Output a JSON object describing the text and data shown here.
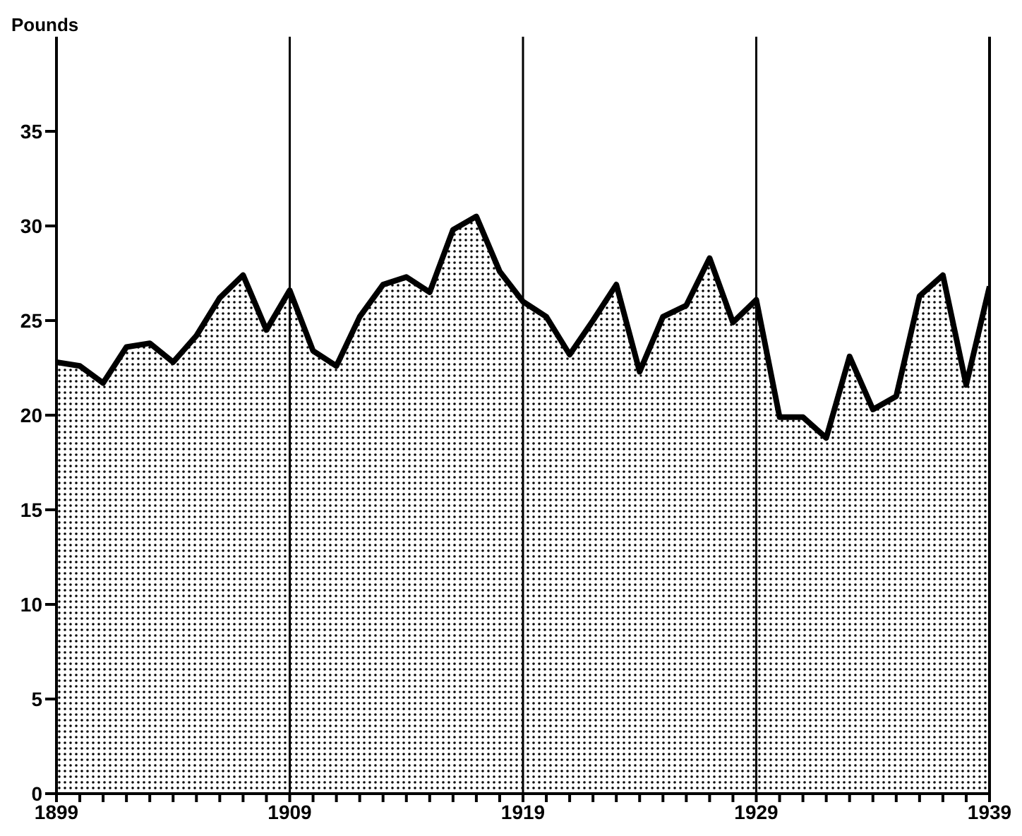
{
  "chart_data": {
    "type": "area",
    "ylabel": "Pounds",
    "x": [
      1899,
      1900,
      1901,
      1902,
      1903,
      1904,
      1905,
      1906,
      1907,
      1908,
      1909,
      1910,
      1911,
      1912,
      1913,
      1914,
      1915,
      1916,
      1917,
      1918,
      1919,
      1920,
      1921,
      1922,
      1923,
      1924,
      1925,
      1926,
      1927,
      1928,
      1929,
      1930,
      1931,
      1932,
      1933,
      1934,
      1935,
      1936,
      1937,
      1938,
      1939
    ],
    "series": [
      {
        "color": "#000000",
        "values": [
          22.8,
          22.6,
          21.7,
          23.6,
          23.8,
          22.8,
          24.2,
          26.2,
          27.4,
          24.5,
          26.6,
          23.4,
          22.6,
          25.2,
          26.9,
          27.3,
          26.5,
          29.8,
          30.5,
          27.6,
          26.0,
          25.2,
          23.2,
          25.0,
          26.9,
          22.3,
          25.2,
          25.8,
          28.3,
          24.9,
          26.1,
          19.9,
          19.9,
          18.8,
          23.1,
          20.3,
          21.0,
          26.3,
          27.4,
          21.6,
          26.8
        ]
      }
    ],
    "xlim": [
      1899,
      1939
    ],
    "xticks": [
      1899,
      {
        "value": 1900,
        "label": null
      },
      {
        "value": 1901,
        "label": null
      },
      {
        "value": 1902,
        "label": null
      },
      {
        "value": 1903,
        "label": null
      },
      {
        "value": 1904,
        "label": null
      },
      {
        "value": 1905,
        "label": null
      },
      {
        "value": 1906,
        "label": null
      },
      {
        "value": 1907,
        "label": null
      },
      {
        "value": 1908,
        "label": null
      },
      1909,
      {
        "value": 1910,
        "label": null
      },
      {
        "value": 1911,
        "label": null
      },
      {
        "value": 1912,
        "label": null
      },
      {
        "value": 1913,
        "label": null
      },
      {
        "value": 1914,
        "label": null
      },
      {
        "value": 1915,
        "label": null
      },
      {
        "value": 1916,
        "label": null
      },
      {
        "value": 1917,
        "label": null
      },
      {
        "value": 1918,
        "label": null
      },
      1919,
      {
        "value": 1920,
        "label": null
      },
      {
        "value": 1921,
        "label": null
      },
      {
        "value": 1922,
        "label": null
      },
      {
        "value": 1923,
        "label": null
      },
      {
        "value": 1924,
        "label": null
      },
      {
        "value": 1925,
        "label": null
      },
      {
        "value": 1926,
        "label": null
      },
      {
        "value": 1927,
        "label": null
      },
      {
        "value": 1928,
        "label": null
      },
      1929,
      {
        "value": 1930,
        "label": null
      },
      {
        "value": 1931,
        "label": null
      },
      {
        "value": 1932,
        "label": null
      },
      {
        "value": 1933,
        "label": null
      },
      {
        "value": 1934,
        "label": null
      },
      {
        "value": 1935,
        "label": null
      },
      {
        "value": 1936,
        "label": null
      },
      {
        "value": 1937,
        "label": null
      },
      {
        "value": 1938,
        "label": null
      },
      1939
    ],
    "ylim": [
      0,
      40
    ],
    "yticks": [
      0,
      5,
      10,
      15,
      20,
      25,
      30,
      35
    ],
    "ref_lines": [
      {
        "axis": "x",
        "value": 1909,
        "color": "#000000"
      },
      {
        "axis": "x",
        "value": 1919,
        "color": "#000000"
      },
      {
        "axis": "x",
        "value": 1929,
        "color": "#000000"
      }
    ],
    "legend": false
  }
}
